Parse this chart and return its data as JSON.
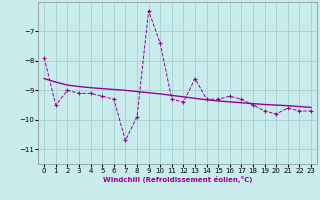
{
  "xlabel": "Windchill (Refroidissement éolien,°C)",
  "ylabel": "",
  "background_color": "#c8ecec",
  "grid_color": "#aad4d4",
  "line_color": "#990099",
  "x": [
    0,
    1,
    2,
    3,
    4,
    5,
    6,
    7,
    8,
    9,
    10,
    11,
    12,
    13,
    14,
    15,
    16,
    17,
    18,
    19,
    20,
    21,
    22,
    23
  ],
  "y_main": [
    -7.9,
    -9.5,
    -9.0,
    -9.1,
    -9.1,
    -9.2,
    -9.3,
    -10.7,
    -9.9,
    -6.3,
    -7.4,
    -9.3,
    -9.4,
    -8.6,
    -9.3,
    -9.3,
    -9.2,
    -9.3,
    -9.5,
    -9.7,
    -9.8,
    -9.6,
    -9.7,
    -9.7
  ],
  "y_trend": [
    -8.6,
    -8.72,
    -8.82,
    -8.87,
    -8.91,
    -8.94,
    -8.97,
    -9.0,
    -9.04,
    -9.08,
    -9.12,
    -9.17,
    -9.22,
    -9.27,
    -9.32,
    -9.36,
    -9.39,
    -9.42,
    -9.45,
    -9.48,
    -9.5,
    -9.52,
    -9.55,
    -9.58
  ],
  "ylim": [
    -11.5,
    -6.0
  ],
  "yticks": [
    -11,
    -10,
    -9,
    -8,
    -7
  ],
  "xlim": [
    -0.5,
    23.5
  ],
  "xticks": [
    0,
    1,
    2,
    3,
    4,
    5,
    6,
    7,
    8,
    9,
    10,
    11,
    12,
    13,
    14,
    15,
    16,
    17,
    18,
    19,
    20,
    21,
    22,
    23
  ],
  "fontsize_label": 5.0,
  "fontsize_tick": 5.0
}
